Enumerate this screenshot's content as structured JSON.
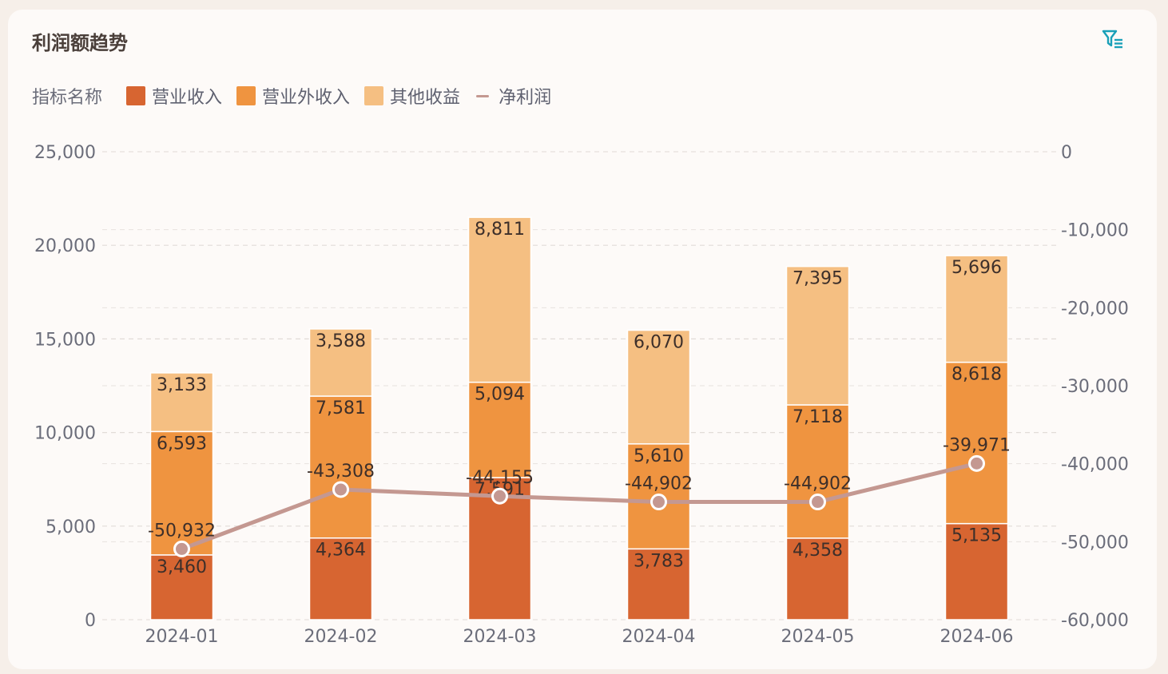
{
  "header": {
    "title": "利润额趋势",
    "filter_icon": "filter-list-icon"
  },
  "legend": {
    "title": "指标名称",
    "items": [
      {
        "label": "营业收入",
        "color": "#d76531",
        "kind": "bar"
      },
      {
        "label": "营业外收入",
        "color": "#ef9440",
        "kind": "bar"
      },
      {
        "label": "其他收益",
        "color": "#f5bf82",
        "kind": "bar"
      },
      {
        "label": "净利润",
        "color": "#c49891",
        "kind": "line"
      }
    ]
  },
  "chart_data": {
    "type": "bar",
    "stacked": true,
    "categories": [
      "2024-01",
      "2024-02",
      "2024-03",
      "2024-04",
      "2024-05",
      "2024-06"
    ],
    "series": [
      {
        "name": "营业收入",
        "axis": "left",
        "values": [
          3460,
          4364,
          7591,
          3783,
          4358,
          5135
        ]
      },
      {
        "name": "营业外收入",
        "axis": "left",
        "values": [
          6593,
          7581,
          5094,
          5610,
          7118,
          8618
        ]
      },
      {
        "name": "其他收益",
        "axis": "left",
        "values": [
          3133,
          3588,
          8811,
          6070,
          7395,
          5696
        ]
      },
      {
        "name": "净利润",
        "axis": "right",
        "type": "line",
        "values": [
          -50932,
          -43308,
          -44155,
          -44902,
          -44902,
          -39971
        ]
      }
    ],
    "y_left": {
      "ticks": [
        "25,000",
        "20,000",
        "15,000",
        "10,000",
        "5,000",
        "0"
      ],
      "range": [
        0,
        25000
      ]
    },
    "y_right": {
      "ticks": [
        "0",
        "-10,000",
        "-20,000",
        "-30,000",
        "-40,000",
        "-50,000",
        "-60,000"
      ],
      "range": [
        -60000,
        0
      ]
    },
    "grid": true,
    "legend_position": "top-left"
  }
}
